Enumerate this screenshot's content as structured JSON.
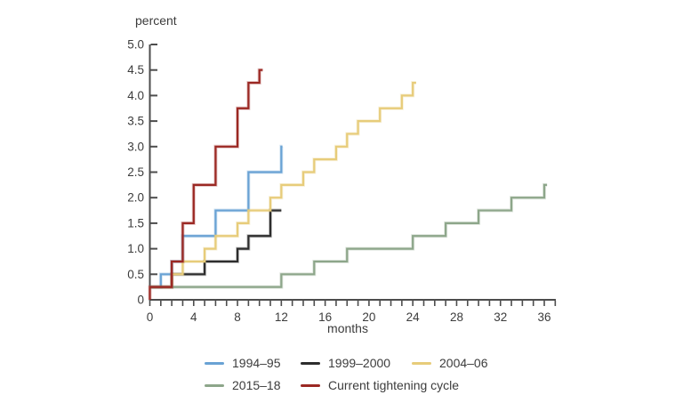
{
  "page": {
    "background": "#ffffff"
  },
  "axis_unit_label": "percent",
  "x_axis_label": "months",
  "chart_data": {
    "type": "line",
    "subtype": "step",
    "title": "",
    "xlabel": "months",
    "ylabel": "percent",
    "x_range": [
      0,
      37
    ],
    "y_range": [
      0,
      5
    ],
    "grid": false,
    "legend_position": "bottom",
    "axis_color": "#4d4d4d",
    "text_color": "#3c3c3c",
    "x_major_ticks": [
      0,
      4,
      8,
      12,
      16,
      20,
      24,
      28,
      32,
      36
    ],
    "x_minor_tick_interval": 1,
    "y_ticks": [
      {
        "v": 0,
        "label": "0"
      },
      {
        "v": 0.5,
        "label": "0.5"
      },
      {
        "v": 1,
        "label": "1.0"
      },
      {
        "v": 1.5,
        "label": "1.5"
      },
      {
        "v": 2,
        "label": "2.0"
      },
      {
        "v": 2.5,
        "label": "2.5"
      },
      {
        "v": 3,
        "label": "3.0"
      },
      {
        "v": 3.5,
        "label": "3.5"
      },
      {
        "v": 4,
        "label": "4.0"
      },
      {
        "v": 4.5,
        "label": "4.5"
      },
      {
        "v": 5,
        "label": "5.0"
      }
    ],
    "series": [
      {
        "name": "1994–95",
        "color": "#69a2d4",
        "points": [
          [
            0,
            0.25
          ],
          [
            1,
            0.5
          ],
          [
            2,
            0.75
          ],
          [
            3,
            1.25
          ],
          [
            6,
            1.75
          ],
          [
            9,
            2.5
          ],
          [
            12,
            3.0
          ]
        ],
        "end_month": 12.1
      },
      {
        "name": "1999–2000",
        "color": "#2d2d2d",
        "points": [
          [
            0,
            0.25
          ],
          [
            2,
            0.5
          ],
          [
            5,
            0.75
          ],
          [
            8,
            1.0
          ],
          [
            9,
            1.25
          ],
          [
            11,
            1.75
          ]
        ],
        "end_month": 12
      },
      {
        "name": "2004–06",
        "color": "#e7cc7a",
        "points": [
          [
            0,
            0.25
          ],
          [
            2,
            0.5
          ],
          [
            3,
            0.75
          ],
          [
            5,
            1.0
          ],
          [
            6,
            1.25
          ],
          [
            8,
            1.5
          ],
          [
            9,
            1.75
          ],
          [
            11,
            2.0
          ],
          [
            12,
            2.25
          ],
          [
            14,
            2.5
          ],
          [
            15,
            2.75
          ],
          [
            17,
            3.0
          ],
          [
            18,
            3.25
          ],
          [
            19,
            3.5
          ],
          [
            21,
            3.75
          ],
          [
            23,
            4.0
          ],
          [
            24,
            4.25
          ]
        ],
        "end_month": 24.3
      },
      {
        "name": "2015–18",
        "color": "#8da68a",
        "points": [
          [
            0,
            0.25
          ],
          [
            12,
            0.5
          ],
          [
            15,
            0.75
          ],
          [
            18,
            1.0
          ],
          [
            24,
            1.25
          ],
          [
            27,
            1.5
          ],
          [
            30,
            1.75
          ],
          [
            33,
            2.0
          ],
          [
            36,
            2.25
          ]
        ],
        "end_month": 36.25
      },
      {
        "name": "Current tightening cycle",
        "color": "#9b2823",
        "points": [
          [
            0,
            0
          ],
          [
            0,
            0.25
          ],
          [
            2,
            0.75
          ],
          [
            3,
            1.5
          ],
          [
            4,
            2.25
          ],
          [
            6,
            3.0
          ],
          [
            8,
            3.75
          ],
          [
            9,
            4.25
          ],
          [
            10,
            4.5
          ]
        ],
        "end_month": 10.3
      }
    ]
  }
}
